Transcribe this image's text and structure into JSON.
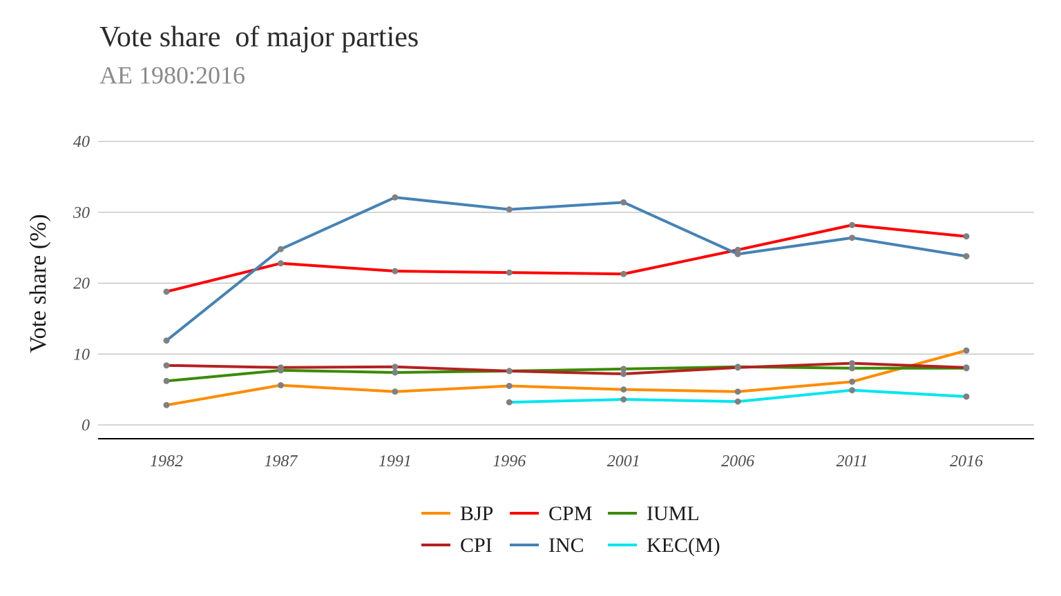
{
  "chart_data": {
    "type": "line",
    "title": "Vote share  of major parties",
    "subtitle": "AE 1980:2016",
    "xlabel": "",
    "ylabel": "Vote share (%)",
    "x": [
      "1982",
      "1987",
      "1991",
      "1996",
      "2001",
      "2006",
      "2011",
      "2016"
    ],
    "yticks": [
      "0",
      "10",
      "20",
      "30",
      "40"
    ],
    "ylim": [
      -2,
      42
    ],
    "grid": true,
    "legend_position": "bottom",
    "point_color": "#808080",
    "series": [
      {
        "name": "BJP",
        "color": "#FF8C00",
        "values": [
          2.8,
          5.6,
          4.7,
          5.5,
          5.0,
          4.7,
          6.1,
          10.5
        ]
      },
      {
        "name": "CPM",
        "color": "#FF0000",
        "values": [
          18.8,
          22.8,
          21.7,
          21.5,
          21.3,
          24.7,
          28.2,
          26.6
        ]
      },
      {
        "name": "IUML",
        "color": "#3A8B00",
        "values": [
          6.2,
          7.7,
          7.4,
          7.6,
          7.9,
          8.2,
          8.0,
          8.0
        ]
      },
      {
        "name": "CPI",
        "color": "#B22222",
        "values": [
          8.4,
          8.1,
          8.2,
          7.6,
          7.2,
          8.1,
          8.7,
          8.1
        ]
      },
      {
        "name": "INC",
        "color": "#4682B4",
        "values": [
          11.9,
          24.8,
          32.1,
          30.4,
          31.4,
          24.1,
          26.4,
          23.8
        ]
      },
      {
        "name": "KEC(M)",
        "color": "#00E5EE",
        "values": [
          null,
          null,
          null,
          3.2,
          3.6,
          3.3,
          4.9,
          4.0
        ]
      }
    ]
  }
}
